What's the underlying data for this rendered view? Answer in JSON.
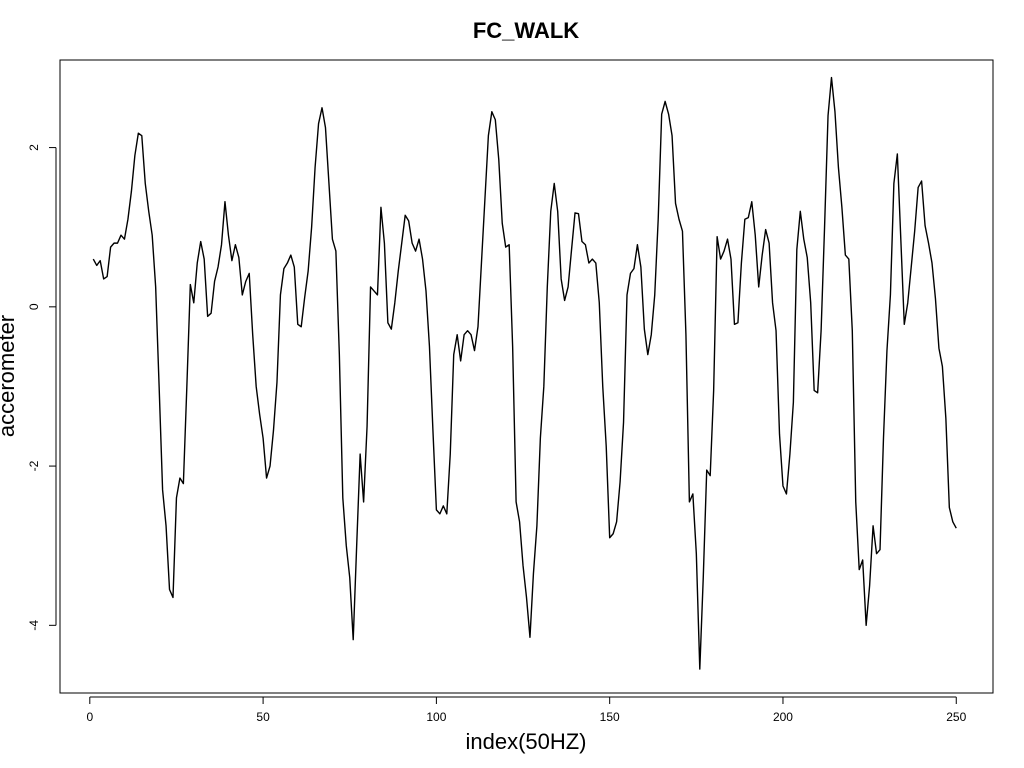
{
  "chart_data": {
    "type": "line",
    "title": "FC_WALK",
    "xlabel": "index(50HZ)",
    "ylabel": "accerometer",
    "xlim": [
      -8.6,
      260.6
    ],
    "ylim": [
      -4.85,
      3.1
    ],
    "x_ticks": [
      0,
      50,
      100,
      150,
      200,
      250
    ],
    "y_ticks": [
      -4,
      -2,
      0,
      2
    ],
    "grid": false,
    "legend": "none",
    "line_color": "#000000",
    "series": [
      {
        "x_start": 1,
        "x_step": 1,
        "values": [
          0.6,
          0.52,
          0.58,
          0.35,
          0.38,
          0.75,
          0.8,
          0.8,
          0.9,
          0.85,
          1.1,
          1.45,
          1.9,
          2.18,
          2.15,
          1.55,
          1.2,
          0.9,
          0.25,
          -1.0,
          -2.3,
          -2.75,
          -3.55,
          -3.65,
          -2.4,
          -2.15,
          -2.22,
          -1.0,
          0.28,
          0.05,
          0.55,
          0.82,
          0.6,
          -0.12,
          -0.08,
          0.32,
          0.5,
          0.78,
          1.32,
          0.9,
          0.58,
          0.78,
          0.62,
          0.15,
          0.32,
          0.42,
          -0.35,
          -1.0,
          -1.35,
          -1.65,
          -2.15,
          -2.0,
          -1.55,
          -0.95,
          0.15,
          0.48,
          0.55,
          0.65,
          0.5,
          -0.22,
          -0.25,
          0.12,
          0.45,
          1.0,
          1.75,
          2.3,
          2.5,
          2.25,
          1.55,
          0.85,
          0.7,
          -0.6,
          -2.4,
          -3.0,
          -3.4,
          -4.18,
          -3.0,
          -1.85,
          -2.45,
          -1.5,
          0.25,
          0.2,
          0.15,
          1.25,
          0.8,
          -0.2,
          -0.28,
          0.05,
          0.45,
          0.8,
          1.15,
          1.08,
          0.8,
          0.7,
          0.85,
          0.6,
          0.2,
          -0.5,
          -1.55,
          -2.55,
          -2.6,
          -2.5,
          -2.6,
          -1.85,
          -0.6,
          -0.35,
          -0.68,
          -0.35,
          -0.3,
          -0.35,
          -0.55,
          -0.25,
          0.55,
          1.35,
          2.15,
          2.45,
          2.35,
          1.85,
          1.05,
          0.75,
          0.78,
          -0.5,
          -2.45,
          -2.7,
          -3.25,
          -3.65,
          -4.15,
          -3.35,
          -2.75,
          -1.65,
          -1.0,
          0.25,
          1.2,
          1.55,
          1.2,
          0.35,
          0.08,
          0.25,
          0.72,
          1.18,
          1.17,
          0.82,
          0.78,
          0.55,
          0.6,
          0.55,
          0.05,
          -1.0,
          -1.75,
          -2.9,
          -2.85,
          -2.7,
          -2.2,
          -1.45,
          0.15,
          0.42,
          0.48,
          0.78,
          0.5,
          -0.28,
          -0.6,
          -0.35,
          0.15,
          1.1,
          2.42,
          2.58,
          2.42,
          2.15,
          1.3,
          1.1,
          0.95,
          -0.35,
          -2.45,
          -2.35,
          -3.1,
          -4.55,
          -3.4,
          -2.05,
          -2.12,
          -1.05,
          0.88,
          0.6,
          0.7,
          0.85,
          0.6,
          -0.22,
          -0.2,
          0.55,
          1.1,
          1.12,
          1.32,
          0.9,
          0.25,
          0.65,
          0.97,
          0.8,
          0.05,
          -0.3,
          -1.6,
          -2.25,
          -2.35,
          -1.85,
          -1.2,
          0.72,
          1.2,
          0.85,
          0.62,
          0.05,
          -1.05,
          -1.08,
          -0.3,
          1.0,
          2.4,
          2.88,
          2.45,
          1.75,
          1.25,
          0.65,
          0.6,
          -0.3,
          -2.45,
          -3.3,
          -3.18,
          -4.0,
          -3.5,
          -2.75,
          -3.1,
          -3.05,
          -1.65,
          -0.55,
          0.15,
          1.55,
          1.92,
          0.85,
          -0.22,
          0.05,
          0.5,
          0.95,
          1.5,
          1.58,
          1.02,
          0.8,
          0.55,
          0.1,
          -0.52,
          -0.75,
          -1.4,
          -2.52,
          -2.7,
          -2.78
        ]
      }
    ]
  }
}
